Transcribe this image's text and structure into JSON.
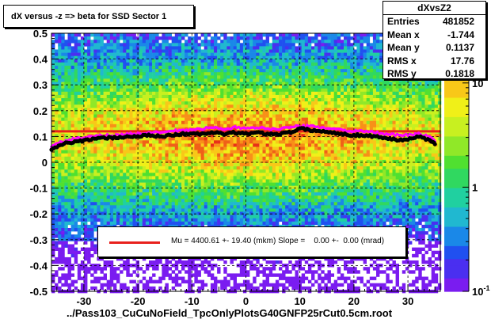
{
  "title": "dX versus -z  => beta for SSD Sector 1",
  "stats": {
    "name": "dXvsZ2",
    "rows": [
      {
        "label": "Entries",
        "value": "481852"
      },
      {
        "label": "Mean x",
        "value": "-1.744"
      },
      {
        "label": "Mean y",
        "value": "0.1137"
      },
      {
        "label": "RMS x",
        "value": "17.76"
      },
      {
        "label": "RMS y",
        "value": "0.1818"
      }
    ]
  },
  "legend": {
    "text": "Mu = 4400.61 +- 19.40 (mkm) Slope =    0.00 +-  0.00 (mrad)",
    "color": "#e8201c"
  },
  "xlabel": "../Pass103_CuCuNoField_TpcOnlyPlotsG40GNFP25rCut0.5cm.root",
  "colors": {
    "fit_line": "#e8201c",
    "profile_black": "#000000",
    "profile_magenta": "#ff00ff"
  },
  "chart_data": {
    "type": "heatmap",
    "title": "dX versus -z  => beta for SSD Sector 1",
    "xlim": [
      -36,
      36
    ],
    "ylim": [
      -0.5,
      0.5
    ],
    "x_ticks": [
      -30,
      -20,
      -10,
      0,
      10,
      20,
      30
    ],
    "x_tick_labels": [
      "-30",
      "-20",
      "-10",
      "0",
      "10",
      "20",
      "30"
    ],
    "y_ticks": [
      -0.5,
      -0.4,
      -0.3,
      -0.2,
      -0.1,
      0,
      0.1,
      0.2,
      0.3,
      0.4,
      0.5
    ],
    "y_tick_labels": [
      "-0.5",
      "-0.4",
      "-0.3",
      "-0.2",
      "-0.1",
      "0",
      "0.1",
      "0.2",
      "0.3",
      "0.4",
      "0.5"
    ],
    "grid": true,
    "colorbar": {
      "scale": "log",
      "range": [
        0.1,
        30
      ],
      "ticks": [
        0.1,
        1,
        10
      ],
      "tick_labels": [
        "10-1",
        "1",
        "10"
      ]
    },
    "fit_line": {
      "y": 0.12,
      "x_range": [
        -36,
        36
      ]
    },
    "profile_black": {
      "x": [
        -36,
        -34,
        -32,
        -30,
        -28,
        -26,
        -24,
        -22,
        -20,
        -18,
        -16,
        -14,
        -12,
        -10,
        -8,
        -6,
        -4,
        -2,
        0,
        2,
        4,
        6,
        8,
        10,
        12,
        14,
        16,
        18,
        20,
        22,
        24,
        26,
        28,
        30,
        32,
        34,
        35
      ],
      "y": [
        0.05,
        0.07,
        0.08,
        0.085,
        0.09,
        0.095,
        0.095,
        0.1,
        0.1,
        0.105,
        0.1,
        0.105,
        0.11,
        0.11,
        0.11,
        0.115,
        0.11,
        0.115,
        0.11,
        0.115,
        0.11,
        0.11,
        0.115,
        0.13,
        0.125,
        0.12,
        0.115,
        0.11,
        0.105,
        0.105,
        0.1,
        0.095,
        0.085,
        0.09,
        0.1,
        0.085,
        0.07
      ]
    },
    "profile_magenta": {
      "x": [
        -36,
        -34,
        -32,
        -30,
        -28,
        -26,
        -24,
        -22,
        -20,
        -18,
        -16,
        -14,
        -12,
        -10,
        -8,
        -6,
        -4,
        -2,
        0,
        2,
        4,
        6,
        8,
        10,
        12,
        14,
        16,
        18,
        20,
        22,
        24,
        26,
        28,
        30,
        32,
        34,
        35
      ],
      "y": [
        0.06,
        0.08,
        0.09,
        0.095,
        0.1,
        0.105,
        0.105,
        0.11,
        0.11,
        0.115,
        0.115,
        0.12,
        0.125,
        0.125,
        0.13,
        0.135,
        0.13,
        0.135,
        0.13,
        0.135,
        0.13,
        0.13,
        0.135,
        0.14,
        0.14,
        0.135,
        0.13,
        0.125,
        0.12,
        0.12,
        0.115,
        0.11,
        0.105,
        0.105,
        0.11,
        0.1,
        0.08
      ]
    }
  }
}
